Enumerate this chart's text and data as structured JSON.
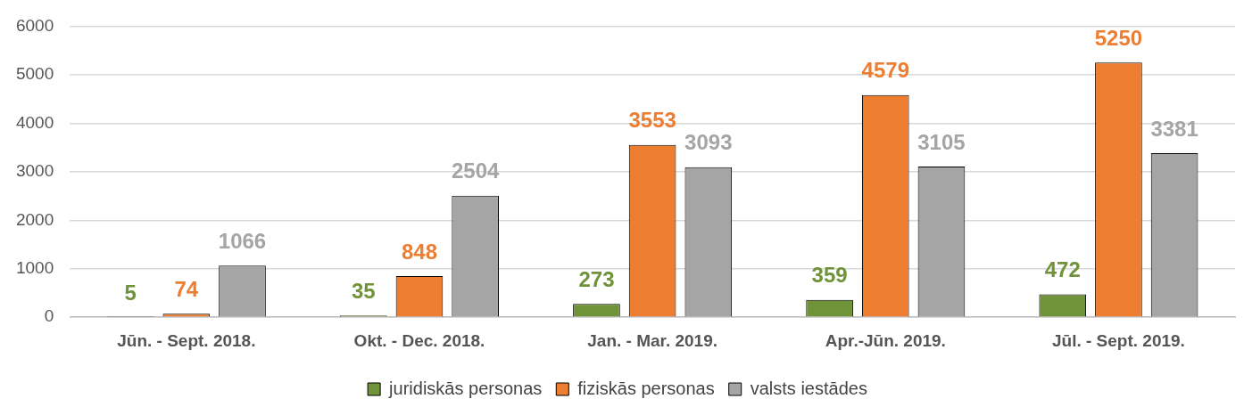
{
  "chart_data": {
    "type": "bar",
    "categories": [
      "Jūn. - Sept. 2018.",
      "Okt. - Dec. 2018.",
      "Jan. - Mar. 2019.",
      "Apr.-Jūn. 2019.",
      "Jūl. - Sept. 2019."
    ],
    "series": [
      {
        "name": "juridiskās personas",
        "color": "#70933a",
        "values": [
          5,
          35,
          273,
          359,
          472
        ]
      },
      {
        "name": "fiziskās personas",
        "color": "#ed7d31",
        "values": [
          74,
          848,
          3553,
          4579,
          5250
        ]
      },
      {
        "name": "valsts iestādes",
        "color": "#a5a5a5",
        "values": [
          1066,
          2504,
          3093,
          3105,
          3381
        ]
      }
    ],
    "ylim": [
      0,
      6000
    ],
    "yticks": [
      0,
      1000,
      2000,
      3000,
      4000,
      5000,
      6000
    ],
    "grid": "y",
    "legend": "bottom",
    "data_labels": true
  }
}
